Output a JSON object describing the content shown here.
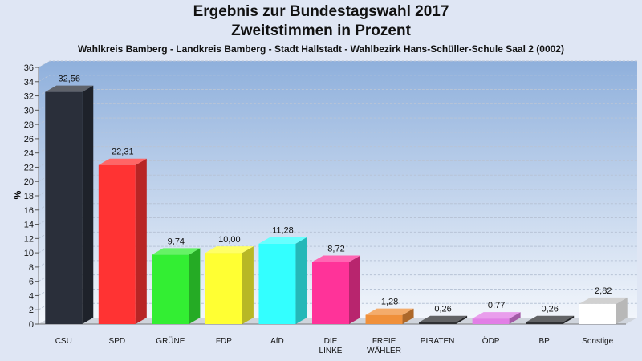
{
  "chart_data": {
    "type": "bar",
    "title": "Ergebnis zur Bundestagswahl 2017",
    "subtitle_line2": "Zweitstimmen in Prozent",
    "subtitle": "Wahlkreis Bamberg - Landkreis Bamberg - Stadt Hallstadt - Wahlbezirk Hans-Schüller-Schule Saal 2 (0002)",
    "ylabel": "%",
    "xlabel": "",
    "ylim": [
      0,
      36
    ],
    "yticks": [
      0,
      2,
      4,
      6,
      8,
      10,
      12,
      14,
      16,
      18,
      20,
      22,
      24,
      26,
      28,
      30,
      32,
      34,
      36
    ],
    "grid": true,
    "categories": [
      "CSU",
      "SPD",
      "GRÜNE",
      "FDP",
      "AfD",
      "DIE LINKE",
      "FREIE WÄHLER",
      "PIRATEN",
      "ÖDP",
      "BP",
      "Sonstige"
    ],
    "category_lines": [
      [
        "CSU"
      ],
      [
        "SPD"
      ],
      [
        "GRÜNE"
      ],
      [
        "FDP"
      ],
      [
        "AfD"
      ],
      [
        "DIE",
        "LINKE"
      ],
      [
        "FREIE",
        "WÄHLER"
      ],
      [
        "PIRATEN"
      ],
      [
        "ÖDP"
      ],
      [
        "BP"
      ],
      [
        "Sonstige"
      ]
    ],
    "values": [
      32.56,
      22.31,
      9.74,
      10.0,
      11.28,
      8.72,
      1.28,
      0.26,
      0.77,
      0.26,
      2.82
    ],
    "value_labels": [
      "32,56",
      "22,31",
      "9,74",
      "10,00",
      "11,28",
      "8,72",
      "1,28",
      "0,26",
      "0,77",
      "0,26",
      "2,82"
    ],
    "colors": [
      "#2a2f3a",
      "#ff3333",
      "#33ee33",
      "#ffff33",
      "#33ffff",
      "#ff3399",
      "#f0903a",
      "#2f3033",
      "#e27ee6",
      "#2f3033",
      "#ffffff"
    ]
  }
}
